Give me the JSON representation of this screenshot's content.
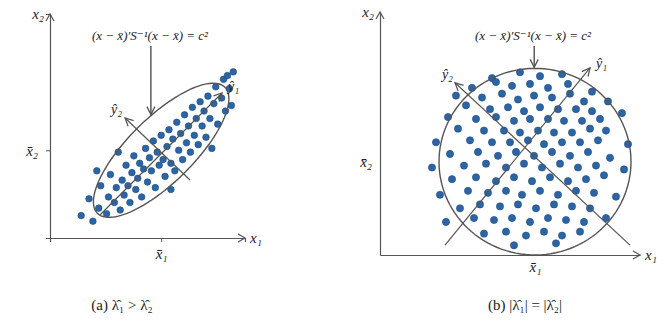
{
  "chart_data": [
    {
      "type": "scatter",
      "caption": "(a) λ̂₁ > λ̂₂",
      "x_label": "x₁",
      "y_label": "x₂",
      "annotation": "(x − x̄)′S⁻¹(x − x̄) = c²",
      "xlim": [
        0,
        10
      ],
      "ylim": [
        0,
        12
      ],
      "xticks": [
        {
          "value": 5.7,
          "label": "x̄₁"
        }
      ],
      "yticks": [
        {
          "value": 4.7,
          "label": "x̄₂"
        }
      ],
      "color": "#2b65a6",
      "marker": "circle",
      "x": [
        1.6,
        2.0,
        2.2,
        2.5,
        2.6,
        2.9,
        3.0,
        3.1,
        3.3,
        3.4,
        3.6,
        3.7,
        3.8,
        3.9,
        4.0,
        4.1,
        4.2,
        4.3,
        4.4,
        4.5,
        4.6,
        4.7,
        4.8,
        4.9,
        5.0,
        5.1,
        5.2,
        5.3,
        5.4,
        5.5,
        5.6,
        5.7,
        5.8,
        5.9,
        6.0,
        6.1,
        6.2,
        6.3,
        6.4,
        6.5,
        6.6,
        6.7,
        6.8,
        6.9,
        7.0,
        7.1,
        7.2,
        7.3,
        7.4,
        7.5,
        7.6,
        7.7,
        7.8,
        7.9,
        8.0,
        8.1,
        8.2,
        8.4,
        8.5,
        8.6,
        8.8,
        8.9,
        9.0,
        9.2,
        9.4,
        9.3,
        9.1,
        3.5,
        2.4,
        6.2,
        8.3
      ],
      "values": [
        1.2,
        2.1,
        0.9,
        1.6,
        2.8,
        1.3,
        2.2,
        3.4,
        1.9,
        2.7,
        1.5,
        3.1,
        2.3,
        3.9,
        2.8,
        1.9,
        3.5,
        4.4,
        2.6,
        3.2,
        4.0,
        2.2,
        3.7,
        4.8,
        3.0,
        4.3,
        3.6,
        5.2,
        2.7,
        4.6,
        3.9,
        5.5,
        4.2,
        3.3,
        4.9,
        5.8,
        4.0,
        5.3,
        3.6,
        6.2,
        4.7,
        5.6,
        4.2,
        6.6,
        5.1,
        6.0,
        4.6,
        7.0,
        5.5,
        6.4,
        5.0,
        7.3,
        6.0,
        6.8,
        5.4,
        7.6,
        6.4,
        7.2,
        8.1,
        6.1,
        7.5,
        8.5,
        6.8,
        8.0,
        8.9,
        7.1,
        8.7,
        4.6,
        3.6,
        2.6,
        4.8
      ],
      "ellipse": {
        "center": [
          5.7,
          4.7
        ],
        "semi_axes": [
          4.7,
          1.7
        ]
      },
      "principal_axes": [
        {
          "name": "ŷ₁",
          "start": [
            2.56,
            1.23
          ],
          "end": [
            8.82,
            7.77
          ]
        },
        {
          "name": "ŷ₂",
          "start": [
            7.18,
            3.11
          ],
          "end": [
            3.85,
            6.43
          ]
        }
      ]
    },
    {
      "type": "scatter",
      "caption": "(b) |λ̂₁| = |λ̂₂|",
      "x_label": "x₁",
      "y_label": "x₂",
      "annotation": "(x − x̄)′S⁻¹(x − x̄) = c²",
      "xlim": [
        0,
        13
      ],
      "ylim": [
        0,
        12.5
      ],
      "xticks": [
        {
          "value": 7.75,
          "label": "x̄₁"
        }
      ],
      "yticks": [
        {
          "value": 4.8,
          "label": "x̄₂"
        }
      ],
      "color": "#2b65a6",
      "marker": "circle",
      "x": [
        5.6,
        7.0,
        8.0,
        9.1,
        4.6,
        5.8,
        6.6,
        7.5,
        8.4,
        9.4,
        10.6,
        3.8,
        5.1,
        6.1,
        6.9,
        7.7,
        8.6,
        9.5,
        10.2,
        11.4,
        4.3,
        5.5,
        6.4,
        7.2,
        8.0,
        8.9,
        9.8,
        10.6,
        3.4,
        4.8,
        5.8,
        6.7,
        7.5,
        8.4,
        9.2,
        10.1,
        11.0,
        12.1,
        3.9,
        5.2,
        6.2,
        7.0,
        7.9,
        8.7,
        9.6,
        10.5,
        11.3,
        2.8,
        4.5,
        5.6,
        6.5,
        7.4,
        8.2,
        9.1,
        10.0,
        10.9,
        12.4,
        3.5,
        4.9,
        5.9,
        6.8,
        7.7,
        8.6,
        9.5,
        10.4,
        11.5,
        2.6,
        4.2,
        5.3,
        6.3,
        7.2,
        8.1,
        9.0,
        9.9,
        10.8,
        12.2,
        3.6,
        4.8,
        5.8,
        6.7,
        7.6,
        8.5,
        9.4,
        10.3,
        11.2,
        3.0,
        4.4,
        5.4,
        6.3,
        7.1,
        8.0,
        8.9,
        9.8,
        10.7,
        11.8,
        4.0,
        5.0,
        6.0,
        6.9,
        7.8,
        8.7,
        9.6,
        10.5,
        3.3,
        4.7,
        5.7,
        6.6,
        7.5,
        8.4,
        9.3,
        10.2,
        11.3,
        5.2,
        6.3,
        7.3,
        8.2,
        9.1,
        10.0,
        6.7,
        8.8
      ],
      "values": [
        9.1,
        9.4,
        9.2,
        9.3,
        8.6,
        8.9,
        8.7,
        8.8,
        8.6,
        8.8,
        8.4,
        8.2,
        8.1,
        8.3,
        8.0,
        8.2,
        8.1,
        8.3,
        7.9,
        7.9,
        7.7,
        7.5,
        7.6,
        7.4,
        7.6,
        7.5,
        7.5,
        7.4,
        7.1,
        7.0,
        7.1,
        6.9,
        7.0,
        7.0,
        6.9,
        6.9,
        7.0,
        7.3,
        6.5,
        6.4,
        6.4,
        6.3,
        6.4,
        6.3,
        6.3,
        6.5,
        6.4,
        5.8,
        5.9,
        5.8,
        5.8,
        5.9,
        5.7,
        5.8,
        5.8,
        5.9,
        5.7,
        5.2,
        5.3,
        5.1,
        5.3,
        5.1,
        5.3,
        5.1,
        5.3,
        5.0,
        4.5,
        4.6,
        4.7,
        4.5,
        4.7,
        4.5,
        4.7,
        4.5,
        4.6,
        4.4,
        3.9,
        4.0,
        3.8,
        4.0,
        3.8,
        4.0,
        3.8,
        3.9,
        4.1,
        3.1,
        3.3,
        3.2,
        3.3,
        3.1,
        3.3,
        3.1,
        3.3,
        3.2,
        3.0,
        2.4,
        2.6,
        2.5,
        2.6,
        2.4,
        2.6,
        2.5,
        2.4,
        1.7,
        1.9,
        1.8,
        1.9,
        1.7,
        1.9,
        1.8,
        1.7,
        1.9,
        1.1,
        1.2,
        1.0,
        1.2,
        1.0,
        1.2,
        0.5,
        0.6
      ],
      "ellipse": {
        "center": [
          7.75,
          4.8
        ],
        "semi_axes": [
          4.8,
          4.8
        ]
      },
      "principal_axes": [
        {
          "name": "ŷ₁",
          "start": [
            3.25,
            0.51
          ],
          "end": [
            10.5,
            9.62
          ]
        },
        {
          "name": "ŷ₂",
          "start": [
            12.5,
            0.51
          ],
          "end": [
            3.75,
            8.86
          ]
        }
      ]
    }
  ]
}
